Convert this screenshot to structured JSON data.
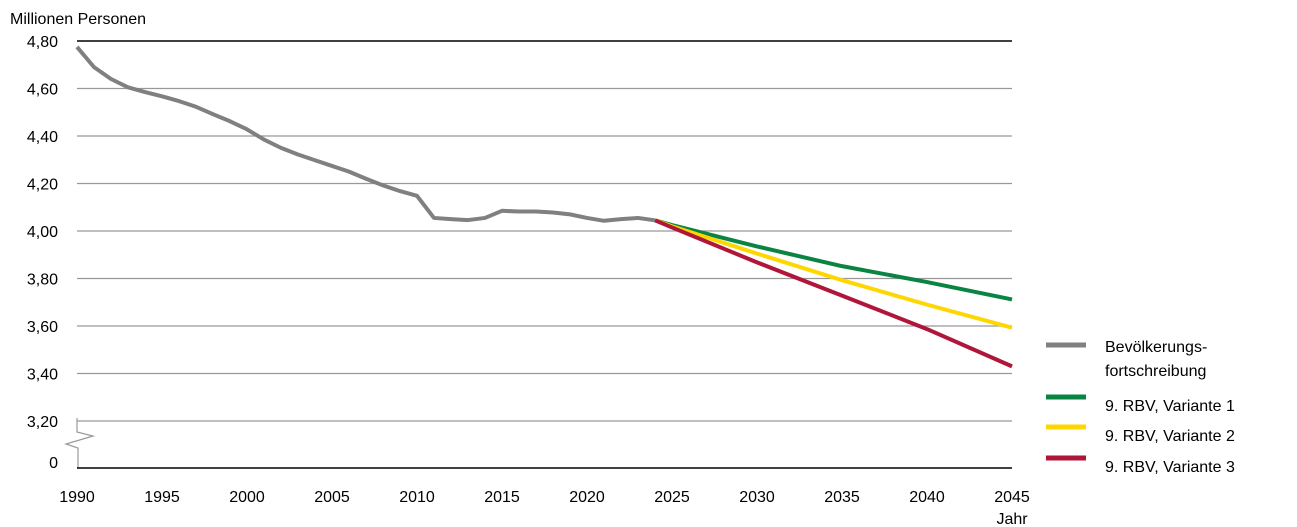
{
  "chart_data": {
    "type": "line",
    "ylabel": "Millionen Personen",
    "xlabel": "Jahr",
    "x_ticks": [
      "1990",
      "1995",
      "2000",
      "2005",
      "2010",
      "2015",
      "2020",
      "2025",
      "2030",
      "2035",
      "2040",
      "2045"
    ],
    "y_ticks": [
      "4,80",
      "4,60",
      "4,40",
      "4,20",
      "4,00",
      "3,80",
      "3,60",
      "3,40",
      "3,20",
      "0"
    ],
    "ylim": [
      3.2,
      4.8
    ],
    "xlim": [
      1990,
      2045
    ],
    "axis_break": true,
    "grid": true,
    "legend_position": "right",
    "series": [
      {
        "name": "Bevölkerungs-\nfortschreibung",
        "legend_lines": [
          "Bevölkerungs-",
          "fortschreibung"
        ],
        "color": "#808080",
        "points": [
          [
            1990,
            4.775
          ],
          [
            1991,
            4.69
          ],
          [
            1992,
            4.64
          ],
          [
            1993,
            4.605
          ],
          [
            1994,
            4.585
          ],
          [
            1995,
            4.567
          ],
          [
            1996,
            4.547
          ],
          [
            1997,
            4.523
          ],
          [
            1998,
            4.492
          ],
          [
            1999,
            4.462
          ],
          [
            2000,
            4.428
          ],
          [
            2001,
            4.385
          ],
          [
            2002,
            4.35
          ],
          [
            2003,
            4.322
          ],
          [
            2004,
            4.298
          ],
          [
            2005,
            4.274
          ],
          [
            2006,
            4.25
          ],
          [
            2007,
            4.22
          ],
          [
            2008,
            4.192
          ],
          [
            2009,
            4.168
          ],
          [
            2010,
            4.148
          ],
          [
            2011,
            4.055
          ],
          [
            2012,
            4.05
          ],
          [
            2013,
            4.046
          ],
          [
            2014,
            4.055
          ],
          [
            2015,
            4.085
          ],
          [
            2016,
            4.082
          ],
          [
            2017,
            4.082
          ],
          [
            2018,
            4.078
          ],
          [
            2019,
            4.07
          ],
          [
            2020,
            4.055
          ],
          [
            2021,
            4.043
          ],
          [
            2022,
            4.05
          ],
          [
            2023,
            4.055
          ],
          [
            2024,
            4.045
          ]
        ]
      },
      {
        "name": "9. RBV, Variante 1",
        "legend_lines": [
          "9. RBV, Variante 1"
        ],
        "color": "#0a8442",
        "points": [
          [
            2024,
            4.045
          ],
          [
            2025,
            4.025
          ],
          [
            2030,
            3.935
          ],
          [
            2035,
            3.852
          ],
          [
            2040,
            3.785
          ],
          [
            2045,
            3.712
          ]
        ]
      },
      {
        "name": "9. RBV, Variante 2",
        "legend_lines": [
          "9. RBV, Variante 2"
        ],
        "color": "#ffd700",
        "points": [
          [
            2024,
            4.045
          ],
          [
            2025,
            4.02
          ],
          [
            2030,
            3.905
          ],
          [
            2035,
            3.793
          ],
          [
            2040,
            3.69
          ],
          [
            2045,
            3.593
          ]
        ]
      },
      {
        "name": "9. RBV, Variante 3",
        "legend_lines": [
          "9. RBV, Variante 3"
        ],
        "color": "#b0163a",
        "points": [
          [
            2024,
            4.045
          ],
          [
            2025,
            4.015
          ],
          [
            2030,
            3.868
          ],
          [
            2035,
            3.728
          ],
          [
            2040,
            3.587
          ],
          [
            2045,
            3.43
          ]
        ]
      }
    ]
  }
}
